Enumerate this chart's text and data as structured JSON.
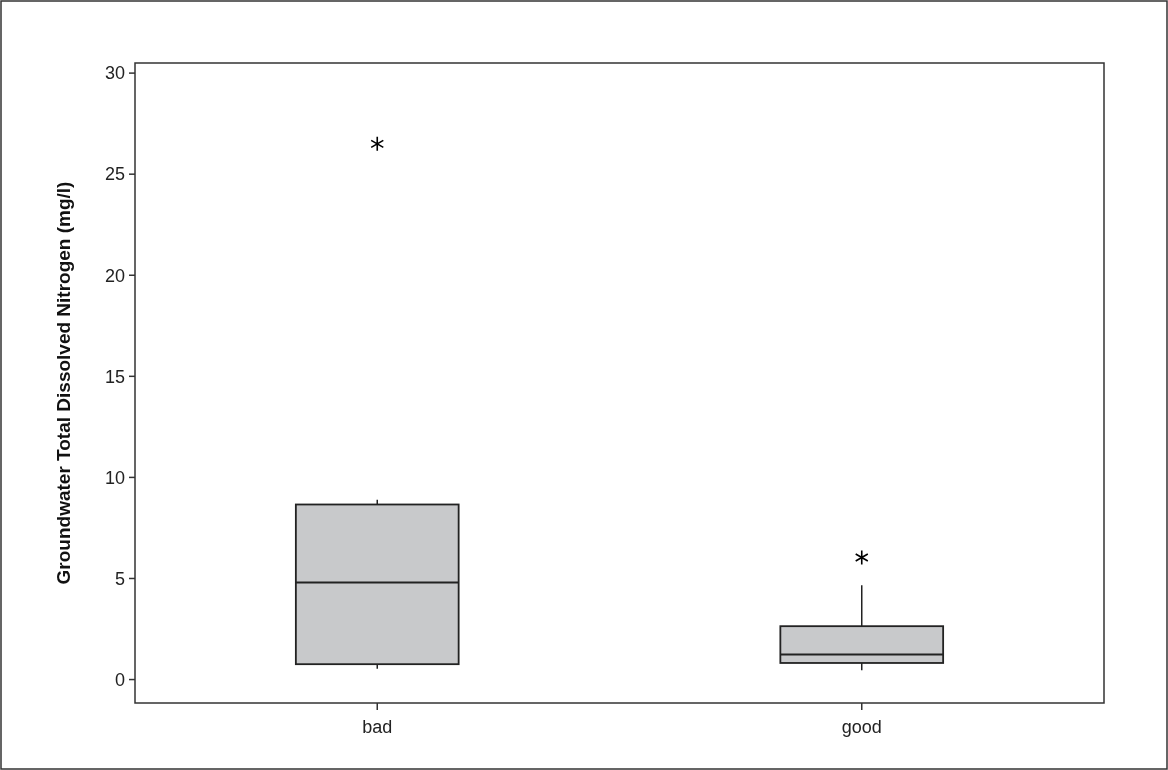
{
  "chart_data": {
    "type": "box",
    "ylabel": "Groundwater Total Dissolved Nitrogen (mg/l)",
    "categories": [
      "bad",
      "good"
    ],
    "color": "#c8c9cb",
    "marker": "star",
    "boxes": [
      {
        "low": 0.54,
        "q1": 0.76,
        "median": 4.8,
        "q3": 8.66,
        "high": 8.9,
        "outliers": [
          26.5
        ]
      },
      {
        "low": 0.46,
        "q1": 0.82,
        "median": 1.24,
        "q3": 2.64,
        "high": 4.67,
        "outliers": [
          6.04
        ]
      }
    ],
    "ylim": [
      -1.16,
      30.5
    ],
    "yticks": [
      0,
      5,
      10,
      15,
      20,
      25,
      30
    ]
  }
}
